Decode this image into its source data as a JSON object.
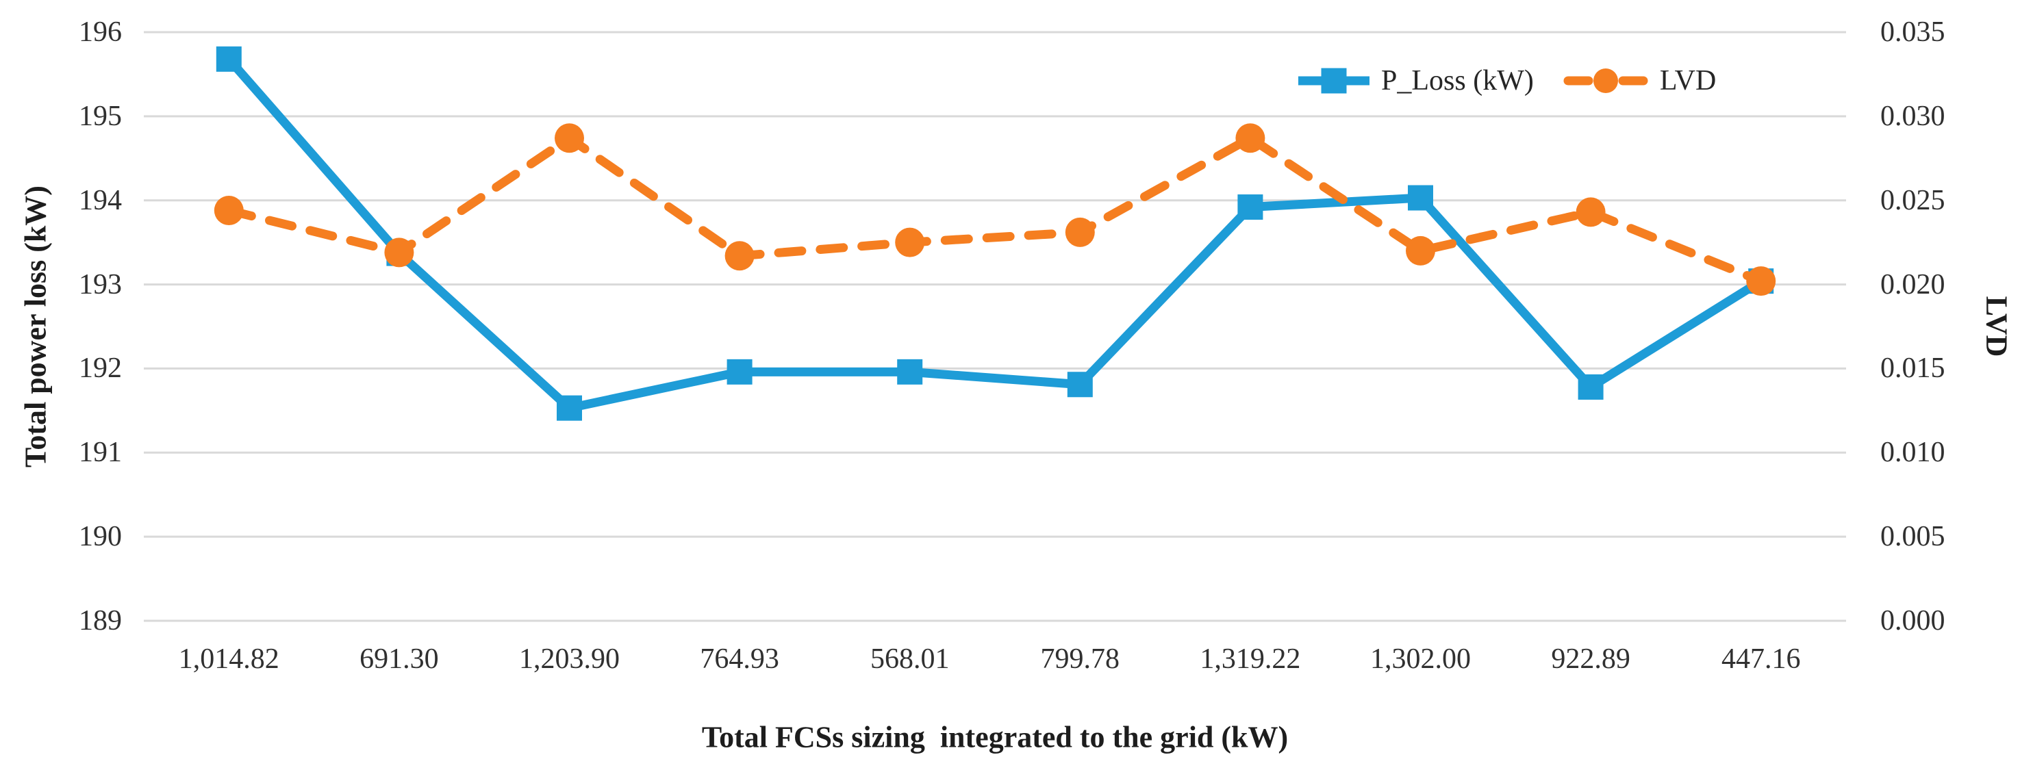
{
  "chart_data": {
    "type": "line",
    "title": "",
    "xlabel": "Total FCSs sizing  integrated to the grid (kW)",
    "ylabel_left": "Total power loss (kW)",
    "ylabel_right": "LVD",
    "grid": true,
    "grid_color": "#d9d9d9",
    "background_color": "#ffffff",
    "tick_text_color": "#303030",
    "legend_position": "top-right",
    "categories": [
      "1,014.82",
      "691.30",
      "1,203.90",
      "764.93",
      "568.01",
      "799.78",
      "1,319.22",
      "1,302.00",
      "922.89",
      "447.16"
    ],
    "left_axis": {
      "min": 189,
      "max": 196,
      "ticks": [
        "196",
        "195",
        "194",
        "193",
        "192",
        "191",
        "190",
        "189"
      ]
    },
    "right_axis": {
      "min": 0.0,
      "max": 0.035,
      "ticks": [
        "0.035",
        "0.030",
        "0.025",
        "0.020",
        "0.015",
        "0.010",
        "0.005",
        "0.000"
      ]
    },
    "series": [
      {
        "name": "P_Loss (kW)",
        "axis": "left",
        "color": "#1e9cd7",
        "line": "solid",
        "marker": "square",
        "values": [
          195.68,
          193.37,
          191.53,
          191.96,
          191.96,
          191.81,
          193.92,
          194.03,
          191.78,
          193.04
        ]
      },
      {
        "name": "LVD",
        "axis": "right",
        "color": "#f57e20",
        "line": "dashed",
        "marker": "circle",
        "values": [
          0.0244,
          0.0219,
          0.0287,
          0.0217,
          0.0225,
          0.0231,
          0.0287,
          0.022,
          0.0243,
          0.0202
        ]
      }
    ]
  }
}
